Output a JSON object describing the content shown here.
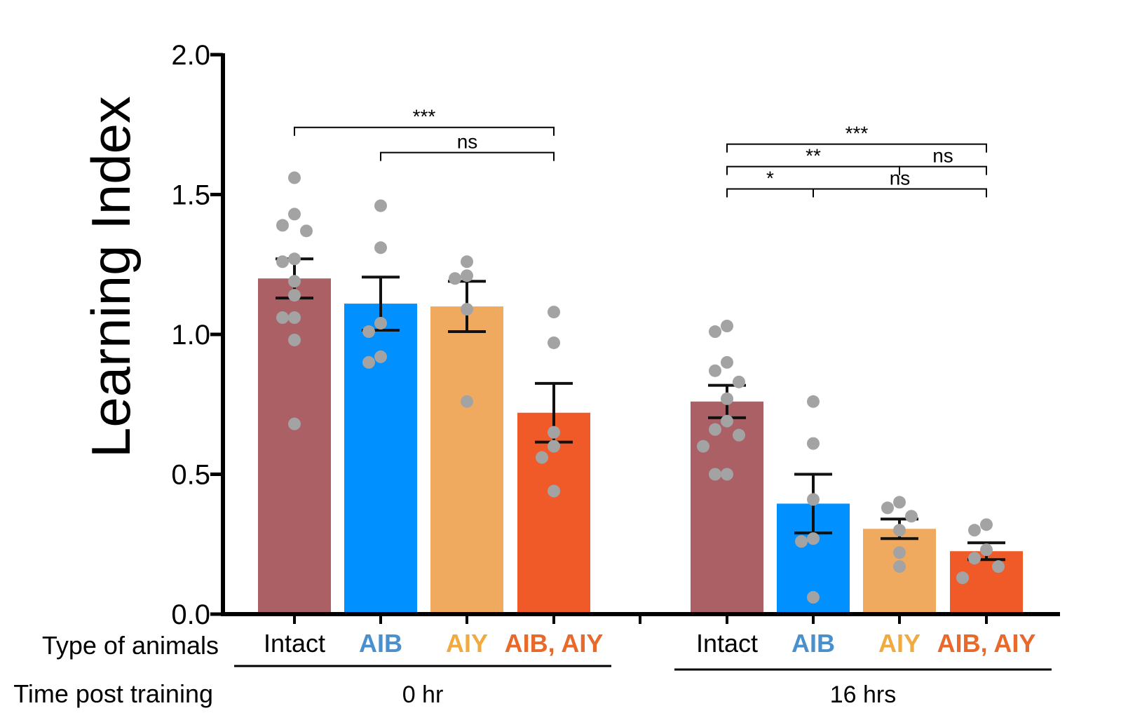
{
  "chart_data": {
    "type": "bar",
    "ylabel": "Learning Index",
    "ylim": [
      0,
      2
    ],
    "yticks": [
      "0.0",
      "0.5",
      "1.0",
      "1.5",
      "2.0"
    ],
    "row_labels": {
      "type": "Type of animals",
      "time": "Time post training"
    },
    "groups": [
      {
        "name": "0 hr",
        "categories": [
          "Intact",
          "AIB",
          "AIY",
          "AIB, AIY"
        ]
      },
      {
        "name": "16 hrs",
        "categories": [
          "Intact",
          "AIB",
          "AIY",
          "AIB, AIY"
        ]
      }
    ],
    "bars": [
      {
        "group": 0,
        "category": "Intact",
        "color": "#ab6066",
        "mean": 1.2,
        "sem": 0.07,
        "points": [
          1.56,
          1.43,
          1.39,
          1.37,
          1.27,
          1.26,
          1.19,
          1.14,
          1.06,
          1.06,
          0.98,
          0.68
        ]
      },
      {
        "group": 0,
        "category": "AIB",
        "color": "#0090ff",
        "mean": 1.11,
        "sem": 0.095,
        "points": [
          1.46,
          1.31,
          1.04,
          1.01,
          0.92,
          0.9
        ]
      },
      {
        "group": 0,
        "category": "AIY",
        "color": "#f0aa60",
        "mean": 1.1,
        "sem": 0.09,
        "points": [
          1.26,
          1.21,
          1.2,
          1.09,
          0.76
        ]
      },
      {
        "group": 0,
        "category": "AIB, AIY",
        "color": "#f05a28",
        "mean": 0.72,
        "sem": 0.105,
        "points": [
          1.08,
          0.97,
          0.65,
          0.6,
          0.56,
          0.44
        ]
      },
      {
        "group": 1,
        "category": "Intact",
        "color": "#ab6066",
        "mean": 0.76,
        "sem": 0.058,
        "points": [
          1.03,
          1.01,
          0.9,
          0.87,
          0.83,
          0.77,
          0.69,
          0.66,
          0.64,
          0.6,
          0.5,
          0.5
        ]
      },
      {
        "group": 1,
        "category": "AIB",
        "color": "#0090ff",
        "mean": 0.395,
        "sem": 0.105,
        "points": [
          0.76,
          0.61,
          0.41,
          0.27,
          0.26,
          0.06
        ]
      },
      {
        "group": 1,
        "category": "AIY",
        "color": "#f0aa60",
        "mean": 0.305,
        "sem": 0.035,
        "points": [
          0.4,
          0.38,
          0.35,
          0.3,
          0.22,
          0.17
        ]
      },
      {
        "group": 1,
        "category": "AIB, AIY",
        "color": "#f05a28",
        "mean": 0.225,
        "sem": 0.03,
        "points": [
          0.32,
          0.3,
          0.23,
          0.2,
          0.17,
          0.13
        ]
      }
    ],
    "category_label_colors": [
      "#000000",
      "#4a90cc",
      "#f0aa40",
      "#e8692a"
    ],
    "significance": [
      {
        "from": 0,
        "to": 3,
        "y": 1.74,
        "label": "***"
      },
      {
        "from": 1,
        "to": 3,
        "y": 1.65,
        "label": "ns"
      },
      {
        "from": 4,
        "to": 7,
        "y": 1.68,
        "label": "***"
      },
      {
        "from": 4,
        "to": 6,
        "y": 1.6,
        "label": "**"
      },
      {
        "from": 6,
        "to": 7,
        "y": 1.6,
        "label": "ns"
      },
      {
        "from": 4,
        "to": 5,
        "y": 1.52,
        "label": "*"
      },
      {
        "from": 5,
        "to": 7,
        "y": 1.52,
        "label": "ns"
      }
    ]
  }
}
